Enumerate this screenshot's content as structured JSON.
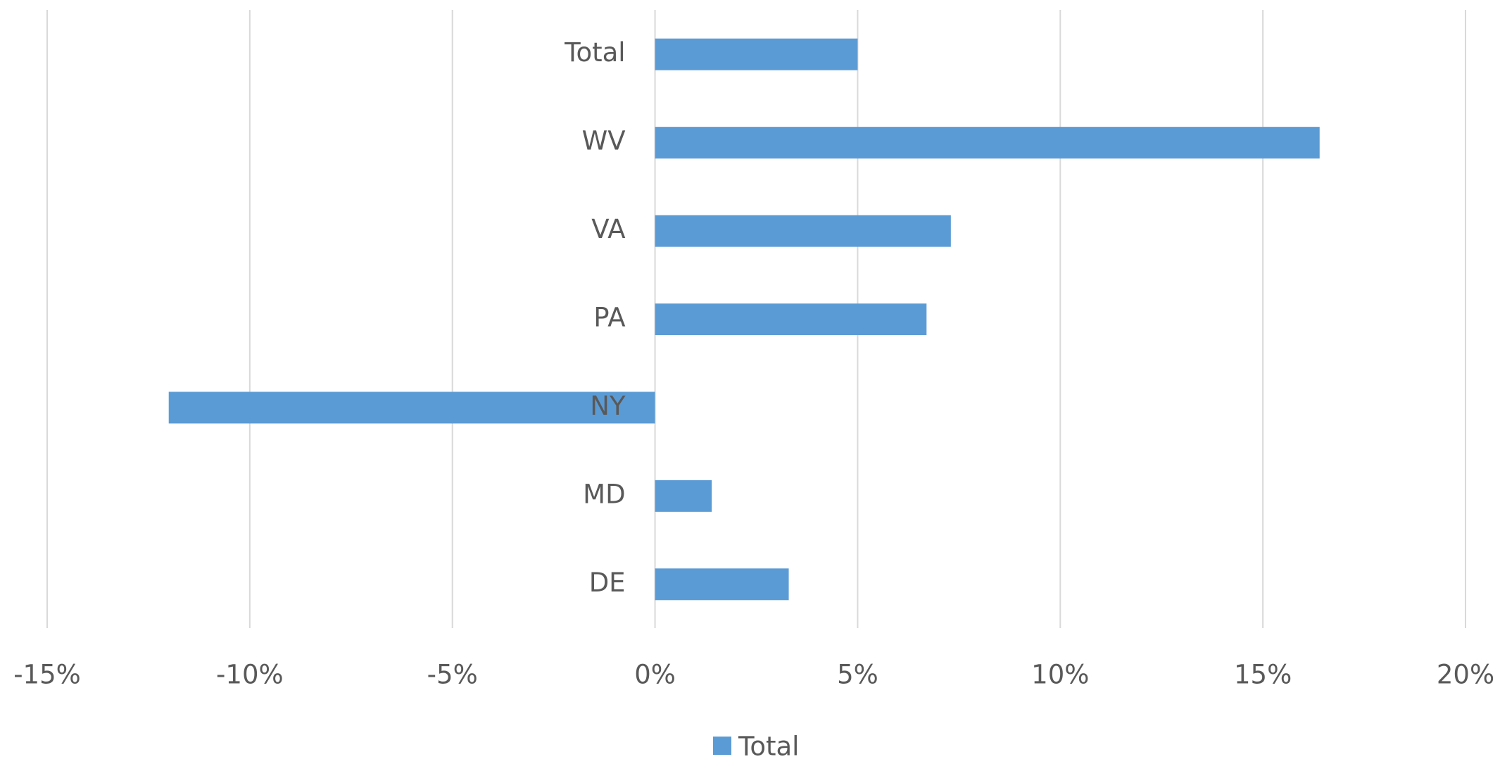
{
  "chart_data": {
    "type": "barh",
    "categories": [
      "Total",
      "WV",
      "VA",
      "PA",
      "NY",
      "MD",
      "DE"
    ],
    "series": [
      {
        "name": "Total",
        "color": "#5b9bd5",
        "values": [
          5.0,
          16.4,
          7.3,
          6.7,
          -12.0,
          1.4,
          3.3
        ]
      }
    ],
    "xlim": [
      -15,
      20
    ],
    "xticks": [
      {
        "value": -15,
        "label": "-15%"
      },
      {
        "value": -10,
        "label": "-10%"
      },
      {
        "value": -5,
        "label": "-5%"
      },
      {
        "value": 0,
        "label": "0%"
      },
      {
        "value": 5,
        "label": "5%"
      },
      {
        "value": 10,
        "label": "10%"
      },
      {
        "value": 15,
        "label": "15%"
      },
      {
        "value": 20,
        "label": "20%"
      }
    ],
    "grid": true,
    "legend": "bottom"
  }
}
